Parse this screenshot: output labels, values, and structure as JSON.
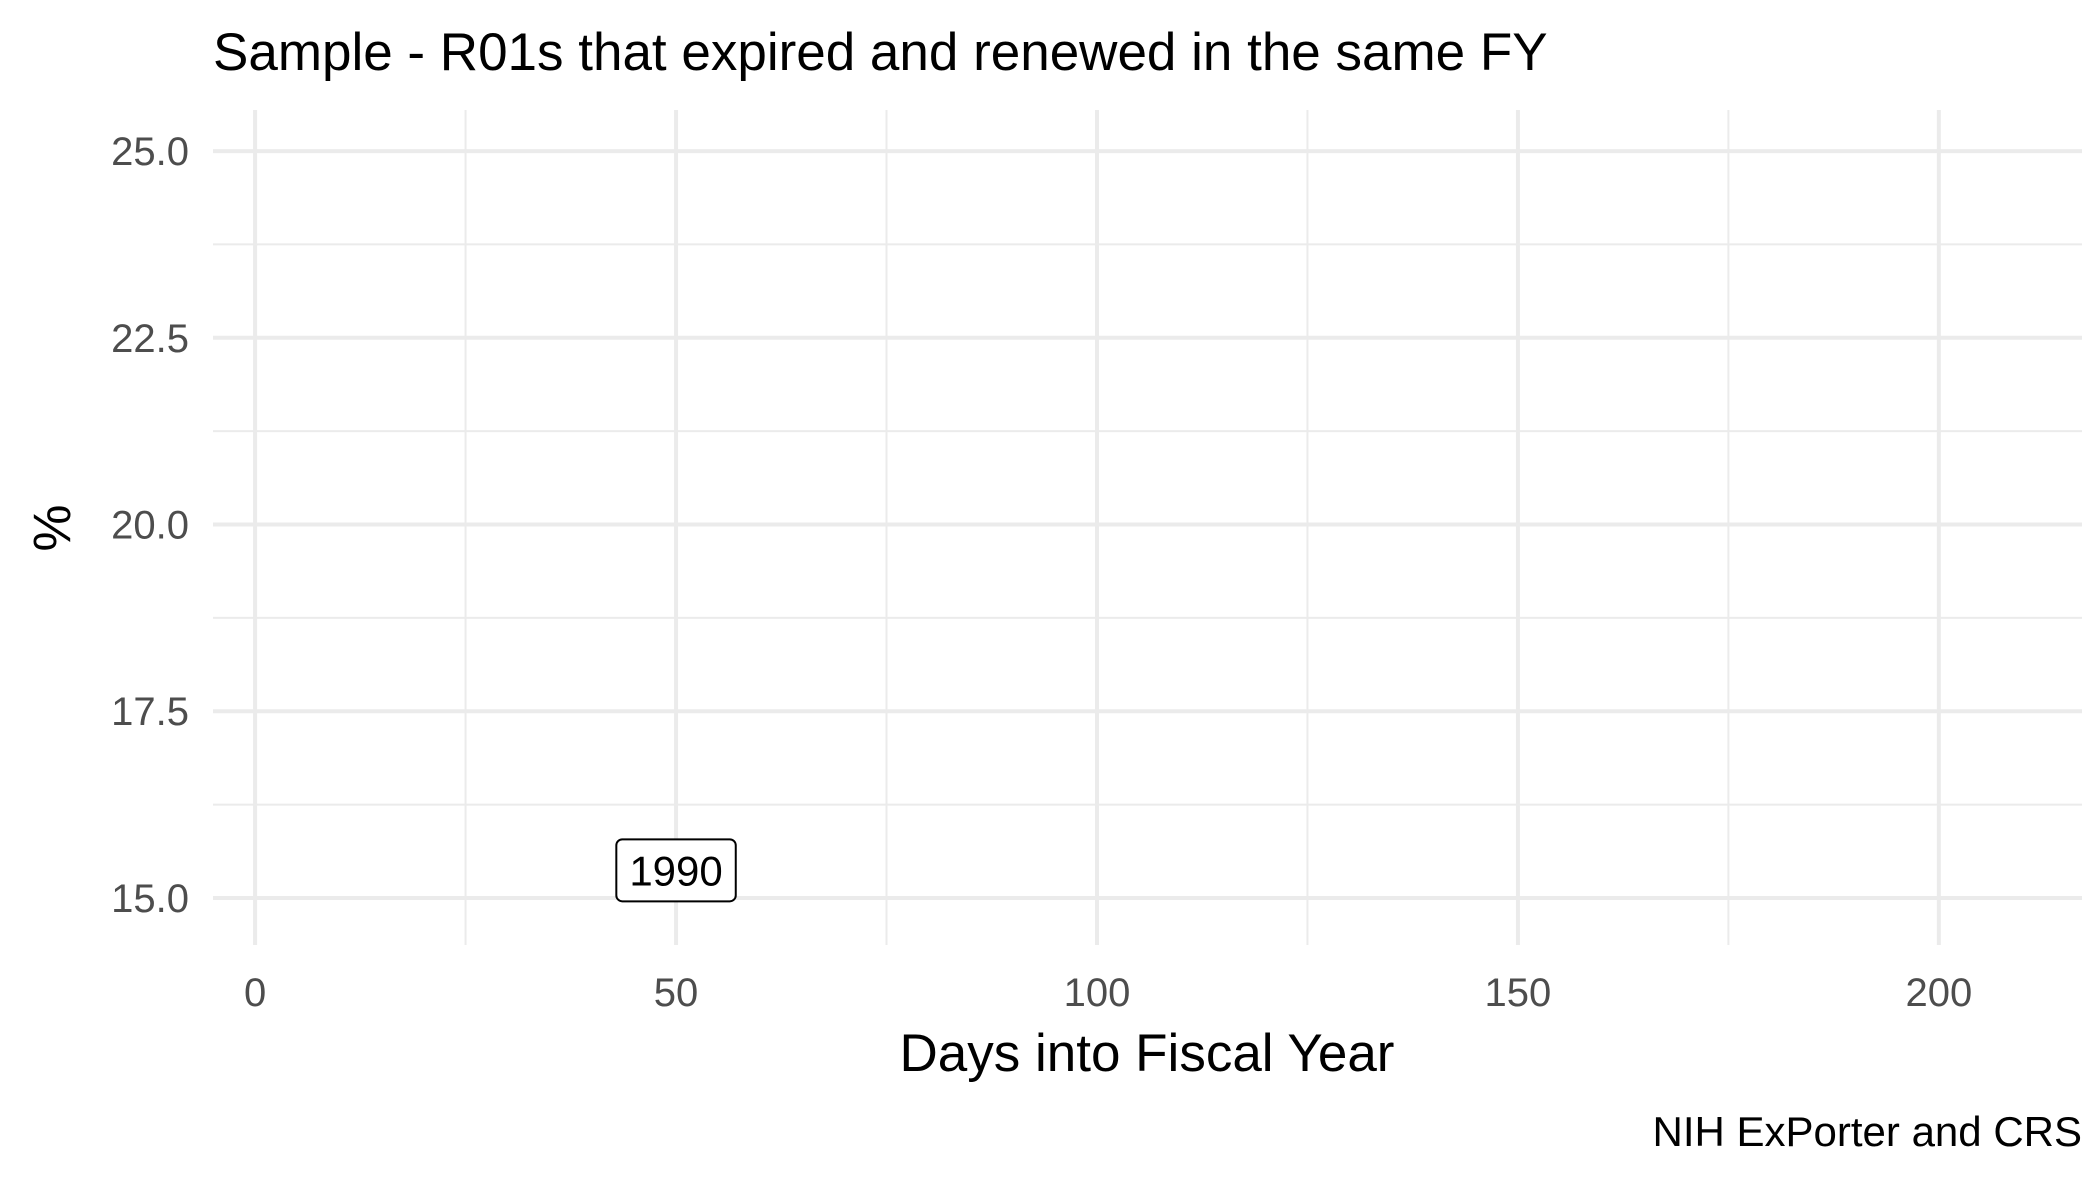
{
  "chart_data": {
    "type": "line",
    "title": "Sample - R01s that expired and renewed in the same FY",
    "xlabel": "Days into Fiscal Year",
    "ylabel": "%",
    "caption": "NIH ExPorter and CRS",
    "xlim": [
      -5,
      217
    ],
    "ylim": [
      14.37,
      25.55
    ],
    "x_ticks": [
      0,
      50,
      100,
      150,
      200
    ],
    "x_tick_labels": [
      "0",
      "50",
      "100",
      "150",
      "200"
    ],
    "x_minor": [
      25,
      75,
      125,
      175
    ],
    "y_ticks": [
      15.0,
      17.5,
      20.0,
      22.5,
      25.0
    ],
    "y_tick_labels": [
      "15.0",
      "17.5",
      "20.0",
      "22.5",
      "25.0"
    ],
    "y_minor": [
      16.25,
      18.75,
      21.25,
      23.75
    ],
    "grid": true,
    "legend": "none",
    "series": [],
    "annotations": [
      {
        "label": "1990",
        "x": 50,
        "y": 15.37
      }
    ],
    "colors": {
      "grid": "#ebebeb",
      "tick_text": "#4d4d4d",
      "text": "#000000",
      "background": "#ffffff"
    }
  }
}
